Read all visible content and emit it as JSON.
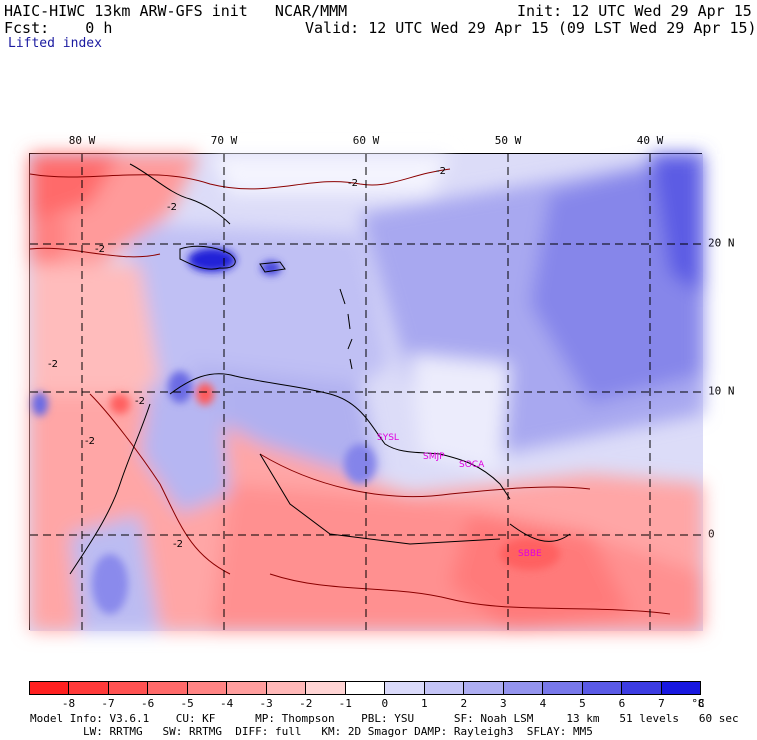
{
  "header": {
    "title": "HAIC-HIWC 13km ARW-GFS init   NCAR/MMM",
    "init": "Init: 12 UTC Wed 29 Apr 15",
    "fcst": "Fcst:    0 h",
    "valid": "Valid: 12 UTC Wed 29 Apr 15 (09 LST Wed 29 Apr 15)",
    "field": "Lifted index"
  },
  "map": {
    "lon_labels": [
      "80 W",
      "70 W",
      "60 W",
      "50 W",
      "40 W"
    ],
    "lat_labels": [
      "20 N",
      "10 N",
      "0"
    ],
    "contour_labels": [
      "-2",
      "-2",
      "-2",
      "-2",
      "-2",
      "-2",
      "-2",
      "-2"
    ],
    "stations": [
      "SYSL",
      "SMJP",
      "SOCA",
      "SBBE"
    ]
  },
  "colorbar": {
    "labels": [
      "-8",
      "-7",
      "-6",
      "-5",
      "-4",
      "-3",
      "-2",
      "-1",
      "0",
      "1",
      "2",
      "3",
      "4",
      "5",
      "6",
      "7",
      "8"
    ],
    "unit": "°C",
    "colors": [
      "#ff2020",
      "#ff3a3a",
      "#ff5252",
      "#ff6a6a",
      "#ff8484",
      "#ff9e9e",
      "#ffb8b8",
      "#ffd4d4",
      "#ffffff",
      "#dadafa",
      "#c4c4f6",
      "#aeaef2",
      "#9494ee",
      "#7878ea",
      "#5a5ae6",
      "#3c3ce2",
      "#1818e0"
    ]
  },
  "footer": {
    "line1": "Model Info: V3.6.1    CU: KF      MP: Thompson    PBL: YSU      SF: Noah LSM     13 km   51 levels   60 sec",
    "line2": "        LW: RRTMG   SW: RRTMG  DIFF: full   KM: 2D Smagor DAMP: Rayleigh3  SFLAY: MM5"
  }
}
